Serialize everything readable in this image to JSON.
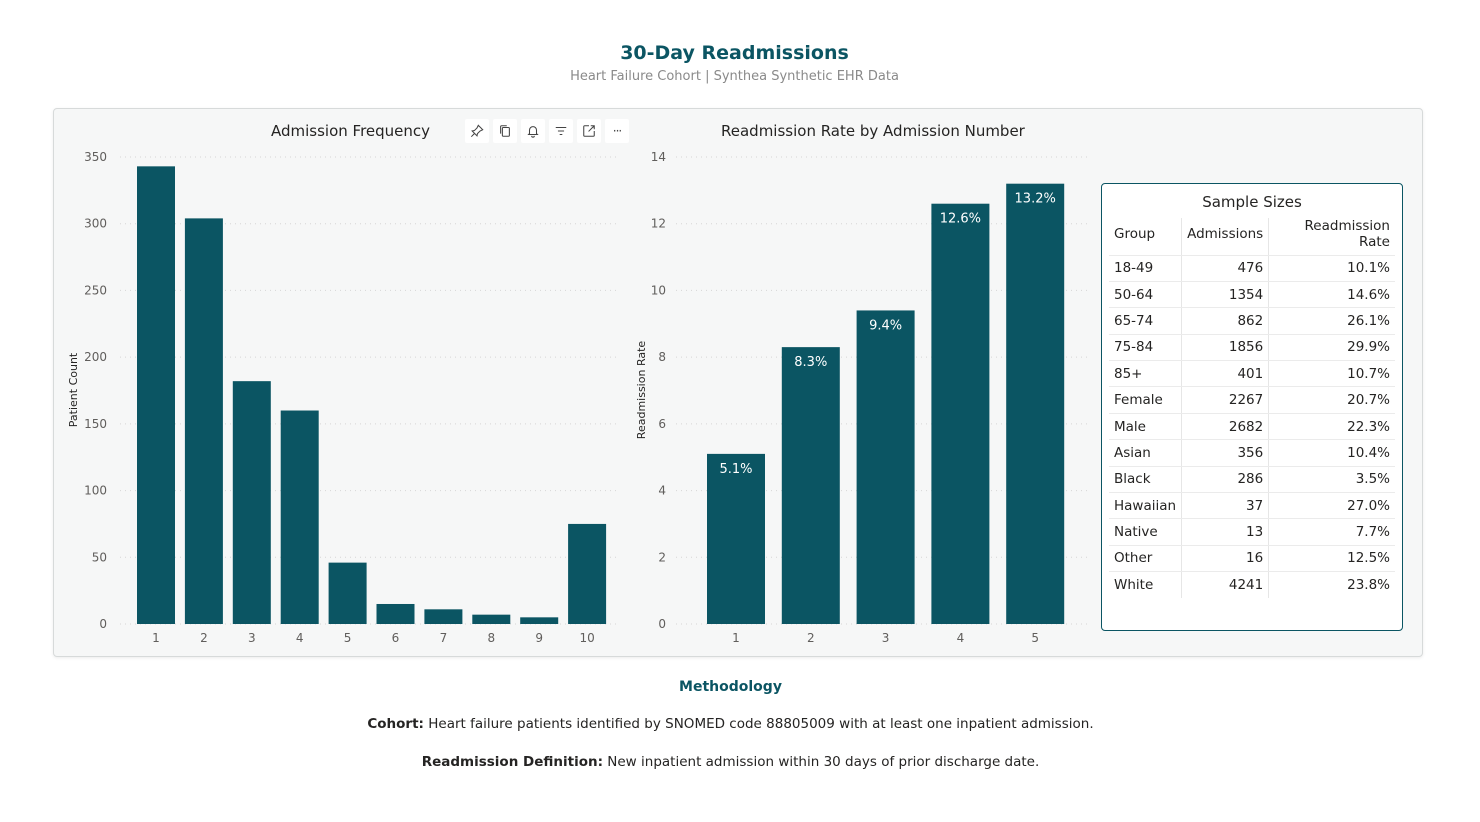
{
  "header": {
    "title": "30-Day Readmissions",
    "subtitle": "Heart Failure Cohort | Synthea Synthetic EHR Data"
  },
  "colors": {
    "bar": "#0b5563",
    "title": "#0b5563",
    "grid": "#d0d0d0"
  },
  "toolbar": {
    "icons": [
      "pin-icon",
      "copy-icon",
      "bell-icon",
      "filter-icon",
      "focus-mode-icon",
      "more-options-icon"
    ],
    "more_label": "···"
  },
  "chart_data": [
    {
      "type": "bar",
      "title": "Admission Frequency",
      "xlabel": "",
      "ylabel": "Patient Count",
      "categories": [
        "1",
        "2",
        "3",
        "4",
        "5",
        "6",
        "7",
        "8",
        "9",
        "10"
      ],
      "values": [
        343,
        304,
        182,
        160,
        46,
        15,
        11,
        7,
        5,
        75
      ],
      "yticks": [
        "0",
        "50",
        "100",
        "150",
        "200",
        "250",
        "300",
        "350"
      ],
      "ylim": [
        0,
        350
      ],
      "grid": true
    },
    {
      "type": "bar",
      "title": "Readmission Rate by Admission Number",
      "xlabel": "",
      "ylabel": "Readmission Rate",
      "categories": [
        "1",
        "2",
        "3",
        "4",
        "5"
      ],
      "values": [
        5.1,
        8.3,
        9.4,
        12.6,
        13.2
      ],
      "data_labels": [
        "5.1%",
        "8.3%",
        "9.4%",
        "12.6%",
        "13.2%"
      ],
      "yticks": [
        "0",
        "2",
        "4",
        "6",
        "8",
        "10",
        "12",
        "14"
      ],
      "ylim": [
        0,
        14
      ],
      "grid": true
    },
    {
      "type": "table",
      "title": "Sample Sizes",
      "columns": [
        "Group",
        "Admissions",
        "Readmission Rate"
      ],
      "rows": [
        [
          "18-49",
          "476",
          "10.1%"
        ],
        [
          "50-64",
          "1354",
          "14.6%"
        ],
        [
          "65-74",
          "862",
          "26.1%"
        ],
        [
          "75-84",
          "1856",
          "29.9%"
        ],
        [
          "85+",
          "401",
          "10.7%"
        ],
        [
          "Female",
          "2267",
          "20.7%"
        ],
        [
          "Male",
          "2682",
          "22.3%"
        ],
        [
          "Asian",
          "356",
          "10.4%"
        ],
        [
          "Black",
          "286",
          "3.5%"
        ],
        [
          "Hawaiian",
          "37",
          "27.0%"
        ],
        [
          "Native",
          "13",
          "7.7%"
        ],
        [
          "Other",
          "16",
          "12.5%"
        ],
        [
          "White",
          "4241",
          "23.8%"
        ]
      ]
    }
  ],
  "methodology": {
    "title": "Methodology",
    "cohort_label": "Cohort:",
    "cohort_text": "Heart failure patients identified by SNOMED code 88805009 with at least one inpatient admission.",
    "definition_label": "Readmission Definition:",
    "definition_text": "New inpatient admission within 30 days of prior discharge date."
  }
}
